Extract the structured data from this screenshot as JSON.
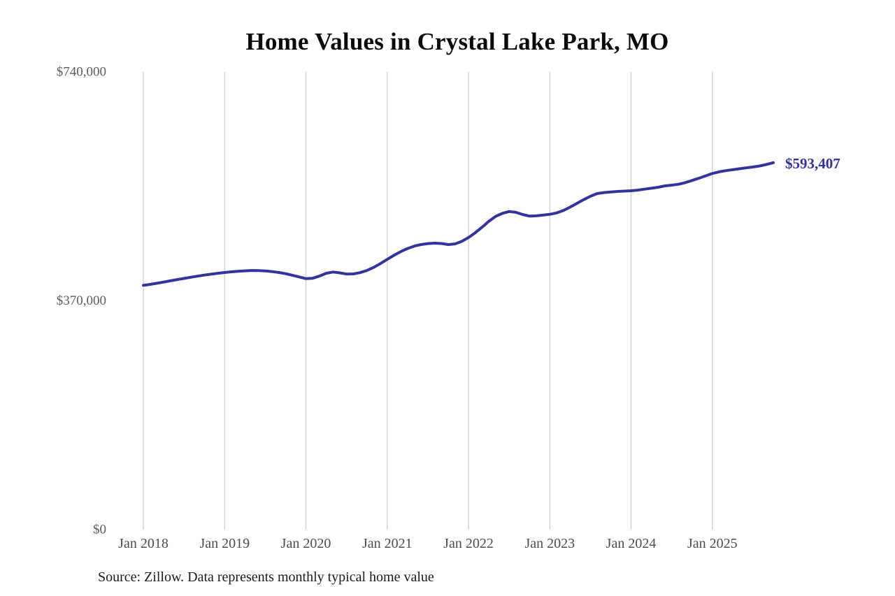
{
  "title": "Home Values in Crystal Lake Park, MO",
  "source_note": "Source: Zillow. Data represents monthly typical home value",
  "end_value_label": "$593,407",
  "colors": {
    "line": "#33339e",
    "end_label": "#33339e",
    "gridline": "#cccccc",
    "x_tick": "#4c4c4c",
    "y_tick": "#5c5c5c",
    "title": "#0a0a0a",
    "source": "#1a1a1a"
  },
  "chart_data": {
    "type": "line",
    "title": "Home Values in Crystal Lake Park, MO",
    "series_name": "Monthly typical home value (Zillow)",
    "x_start": "Jan 2018",
    "x_end": "Oct 2025",
    "x_interval": "month",
    "x_tick_labels": [
      "Jan 2018",
      "Jan 2019",
      "Jan 2020",
      "Jan 2021",
      "Jan 2022",
      "Jan 2023",
      "Jan 2024",
      "Jan 2025"
    ],
    "x_tick_month_indices": [
      0,
      12,
      24,
      36,
      48,
      60,
      72,
      84
    ],
    "y_ticks": [
      0,
      370000,
      740000
    ],
    "y_tick_labels": [
      "$0",
      "$370,000",
      "$740,000"
    ],
    "ylim": [
      0,
      740000
    ],
    "grid": "vertical-only",
    "legend": "none",
    "last_value": 593407,
    "values": [
      395000,
      396600,
      398400,
      400300,
      402300,
      404300,
      406200,
      408100,
      409900,
      411600,
      413100,
      414500,
      415800,
      416900,
      417800,
      418500,
      419000,
      418900,
      418300,
      417200,
      415700,
      413800,
      411400,
      408600,
      405800,
      406500,
      410000,
      414500,
      416500,
      415200,
      413300,
      413500,
      415500,
      419000,
      424000,
      430200,
      437000,
      443500,
      449500,
      454500,
      458500,
      461000,
      462500,
      463200,
      462600,
      461000,
      462000,
      466000,
      472200,
      480000,
      489000,
      498500,
      506500,
      511500,
      514400,
      513000,
      509500,
      506900,
      507400,
      508500,
      509900,
      512000,
      516000,
      521500,
      527500,
      533500,
      539000,
      543400,
      545000,
      546000,
      546800,
      547400,
      547900,
      549000,
      550500,
      552000,
      553600,
      555800,
      557000,
      558500,
      561000,
      564500,
      568200,
      572000,
      575900,
      578500,
      580500,
      582000,
      583500,
      585000,
      586300,
      588000,
      590500,
      593407
    ]
  }
}
